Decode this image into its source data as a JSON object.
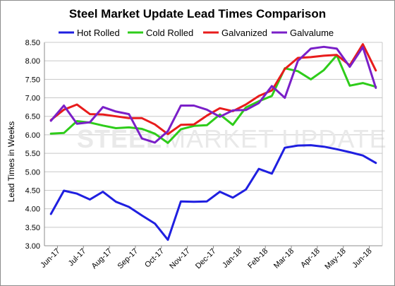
{
  "watermark": {
    "brand_bold": "STEEL",
    "brand_light": "MARKET UPDATE"
  },
  "chart_data": {
    "type": "line",
    "title": "Steel Market Update Lead Times Comparison",
    "xlabel": "",
    "ylabel": "Lead Times in Weeks",
    "ylim": [
      3.0,
      8.5
    ],
    "yticks": [
      "3.00",
      "3.50",
      "4.00",
      "4.50",
      "5.00",
      "5.50",
      "6.00",
      "6.50",
      "7.00",
      "7.50",
      "8.00",
      "8.50"
    ],
    "grid": true,
    "legend_position": "top",
    "month_labels": [
      "Jun-17",
      "Jul-17",
      "Aug-17",
      "Sep-17",
      "Oct-17",
      "Nov-17",
      "Dec-17",
      "Jan-18",
      "Feb-18",
      "Mar-18",
      "Apr-18",
      "May-18",
      "Jun-18"
    ],
    "n_points": 26,
    "series": [
      {
        "name": "Hot Rolled",
        "color": "#1f1fe0",
        "values": [
          3.86,
          4.49,
          4.41,
          4.25,
          4.46,
          4.19,
          4.05,
          3.82,
          3.6,
          3.16,
          4.2,
          4.19,
          4.2,
          4.46,
          4.3,
          4.52,
          5.08,
          4.95,
          5.65,
          5.71,
          5.72,
          5.68,
          5.61,
          5.53,
          5.44,
          5.24
        ]
      },
      {
        "name": "Cold Rolled",
        "color": "#2ecc1a",
        "values": [
          6.03,
          6.05,
          6.37,
          6.33,
          6.25,
          6.18,
          6.2,
          6.16,
          6.03,
          5.78,
          6.15,
          6.24,
          6.26,
          6.55,
          6.27,
          6.74,
          6.91,
          7.05,
          7.8,
          7.72,
          7.5,
          7.75,
          8.15,
          7.33,
          7.4,
          7.3
        ]
      },
      {
        "name": "Galvanized",
        "color": "#e81c1c",
        "values": [
          6.4,
          6.68,
          6.82,
          6.56,
          6.55,
          6.5,
          6.45,
          6.45,
          6.28,
          6.02,
          6.27,
          6.28,
          6.52,
          6.72,
          6.64,
          6.82,
          7.05,
          7.2,
          7.78,
          8.08,
          8.1,
          8.14,
          8.16,
          7.88,
          8.45,
          7.74
        ]
      },
      {
        "name": "Galvalume",
        "color": "#7a1fc8",
        "values": [
          6.38,
          6.79,
          6.3,
          6.34,
          6.75,
          6.63,
          6.56,
          5.9,
          5.79,
          6.1,
          6.79,
          6.79,
          6.68,
          6.49,
          6.66,
          6.67,
          6.86,
          7.32,
          7.0,
          8.0,
          8.33,
          8.38,
          8.33,
          7.84,
          8.37,
          7.27
        ]
      }
    ]
  }
}
